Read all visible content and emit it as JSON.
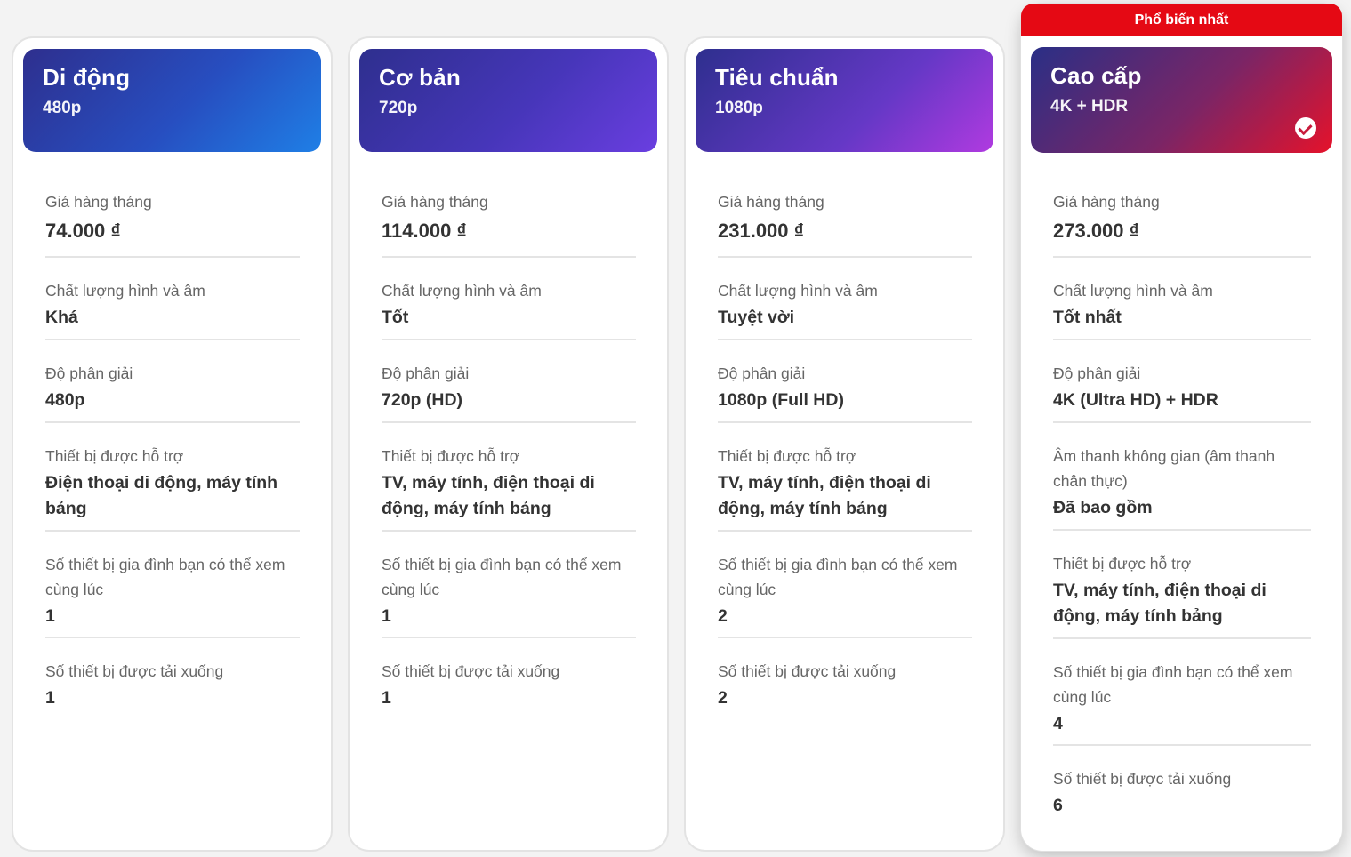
{
  "popular_badge": "Phổ biến nhất",
  "labels": {
    "monthly_price": "Giá hàng tháng",
    "av_quality": "Chất lượng hình và âm",
    "resolution": "Độ phân giải",
    "spatial_audio": "Âm thanh không gian (âm thanh chân thực)",
    "supported_devices": "Thiết bị được hỗ trợ",
    "simultaneous_streams": "Số thiết bị gia đình bạn có thể xem cùng lúc",
    "download_devices": "Số thiết bị được tải xuống"
  },
  "plans": [
    {
      "name": "Di động",
      "resolution_short": "480p",
      "price": "74.000 ₫",
      "quality": "Khá",
      "resolution": "480p",
      "devices": "Điện thoại di động, máy tính bảng",
      "streams": "1",
      "downloads": "1"
    },
    {
      "name": "Cơ bản",
      "resolution_short": "720p",
      "price": "114.000 ₫",
      "quality": "Tốt",
      "resolution": "720p (HD)",
      "devices": "TV, máy tính, điện thoại di động, máy tính bảng",
      "streams": "1",
      "downloads": "1"
    },
    {
      "name": "Tiêu chuẩn",
      "resolution_short": "1080p",
      "price": "231.000 ₫",
      "quality": "Tuyệt vời",
      "resolution": "1080p (Full HD)",
      "devices": "TV, máy tính, điện thoại di động, máy tính bảng",
      "streams": "2",
      "downloads": "2"
    },
    {
      "name": "Cao cấp",
      "resolution_short": "4K + HDR",
      "price": "273.000 ₫",
      "quality": "Tốt nhất",
      "resolution": "4K (Ultra HD) + HDR",
      "spatial_audio": "Đã bao gồm",
      "devices": "TV, máy tính, điện thoại di động, máy tính bảng",
      "streams": "4",
      "downloads": "6",
      "selected": true
    }
  ],
  "colors": {
    "accent_red": "#e50914",
    "header_navy": "#2e2f8e"
  }
}
